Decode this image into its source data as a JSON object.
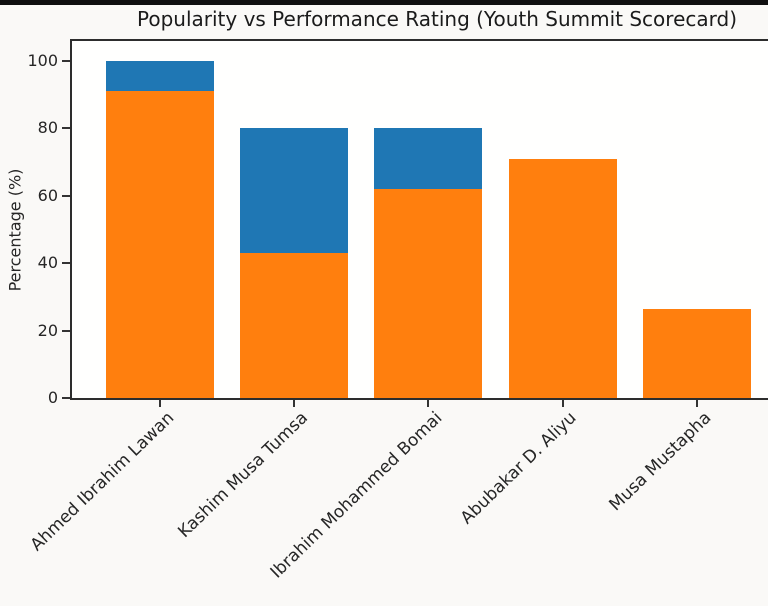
{
  "page": {
    "background_color": "#faf9f7",
    "top_border_color": "#0f0f0f"
  },
  "chart": {
    "title": "Popularity vs Performance Rating (Youth Summit Scorecard)",
    "ylabel": "Percentage (%)"
  },
  "chart_data": {
    "type": "bar",
    "title": "Popularity vs Performance Rating (Youth Summit Scorecard)",
    "xlabel": "",
    "ylabel": "Percentage (%)",
    "ylim": [
      0,
      107
    ],
    "y_ticks": [
      0,
      20,
      40,
      60,
      80,
      100
    ],
    "grid": false,
    "legend": "none",
    "bar_style": "overlaid - orange series drawn in front of blue series",
    "x_tick_rotation_deg": 44,
    "categories": [
      "Ahmed Ibrahim Lawan",
      "Kashim Musa Tumsa",
      "Ibrahim Mohammed Bomai",
      "Abubakar D. Aliyu",
      "Musa Mustapha"
    ],
    "series": [
      {
        "name": "blue-back-series",
        "color": "#1f77b4",
        "values": [
          100,
          80,
          80,
          null,
          null
        ]
      },
      {
        "name": "orange-front-series",
        "color": "#ff7f0e",
        "values": [
          91,
          43,
          62,
          71,
          26.5
        ]
      }
    ]
  }
}
